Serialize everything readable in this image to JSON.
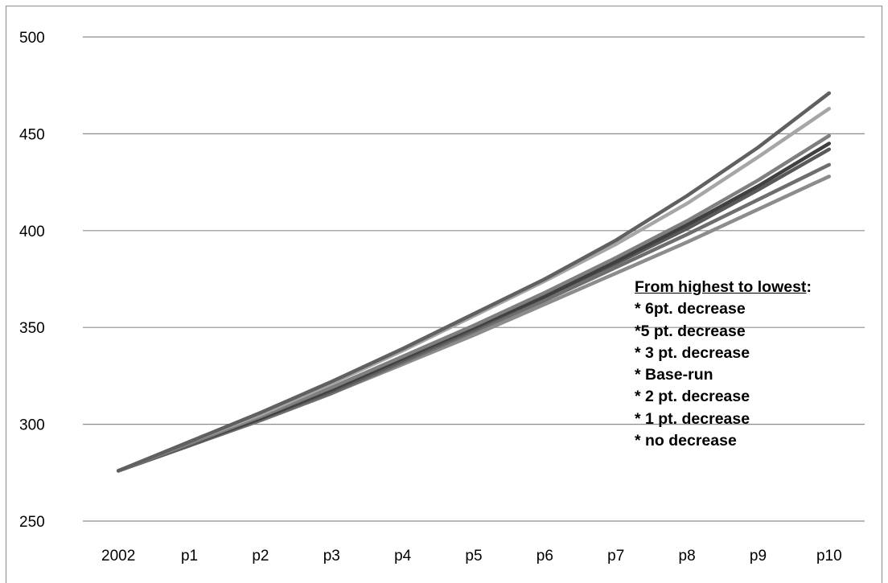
{
  "chart_data": {
    "type": "line",
    "title": "",
    "xlabel": "",
    "ylabel": "",
    "categories": [
      "2002",
      "p1",
      "p2",
      "p3",
      "p4",
      "p5",
      "p6",
      "p7",
      "p8",
      "p9",
      "p10"
    ],
    "ylim": [
      250,
      500
    ],
    "yticks": [
      "250",
      "300",
      "350",
      "400",
      "450",
      "500"
    ],
    "grid": "horizontal",
    "legend": "none",
    "series": [
      {
        "color": "#606060",
        "values": [
          276,
          291,
          306,
          322,
          339,
          357,
          375,
          395,
          418,
          443,
          471
        ]
      },
      {
        "color": "#a6a6a6",
        "values": [
          276,
          291,
          305,
          321,
          338,
          356,
          374,
          393,
          414,
          438,
          463
        ]
      },
      {
        "color": "#7f7f7f",
        "values": [
          276,
          290,
          304,
          319,
          335,
          351,
          368,
          386,
          405,
          426,
          449
        ]
      },
      {
        "color": "#404040",
        "values": [
          276,
          290,
          303,
          318,
          334,
          350,
          366,
          384,
          403,
          423,
          445
        ]
      },
      {
        "color": "#595959",
        "values": [
          276,
          289,
          303,
          317,
          333,
          349,
          366,
          383,
          401,
          421,
          442
        ]
      },
      {
        "color": "#6e6e6e",
        "values": [
          276,
          289,
          302,
          316,
          332,
          348,
          364,
          381,
          398,
          416,
          434
        ]
      },
      {
        "color": "#8c8c8c",
        "values": [
          276,
          289,
          302,
          316,
          331,
          346,
          362,
          378,
          394,
          411,
          428
        ]
      }
    ],
    "annotation": {
      "heading": "From highest to lowest",
      "heading_suffix": ":",
      "items": [
        "* 6pt. decrease",
        "*5 pt. decrease",
        "* 3 pt. decrease",
        "* Base-run",
        "* 2 pt. decrease",
        "* 1 pt. decrease",
        "* no decrease"
      ]
    }
  }
}
